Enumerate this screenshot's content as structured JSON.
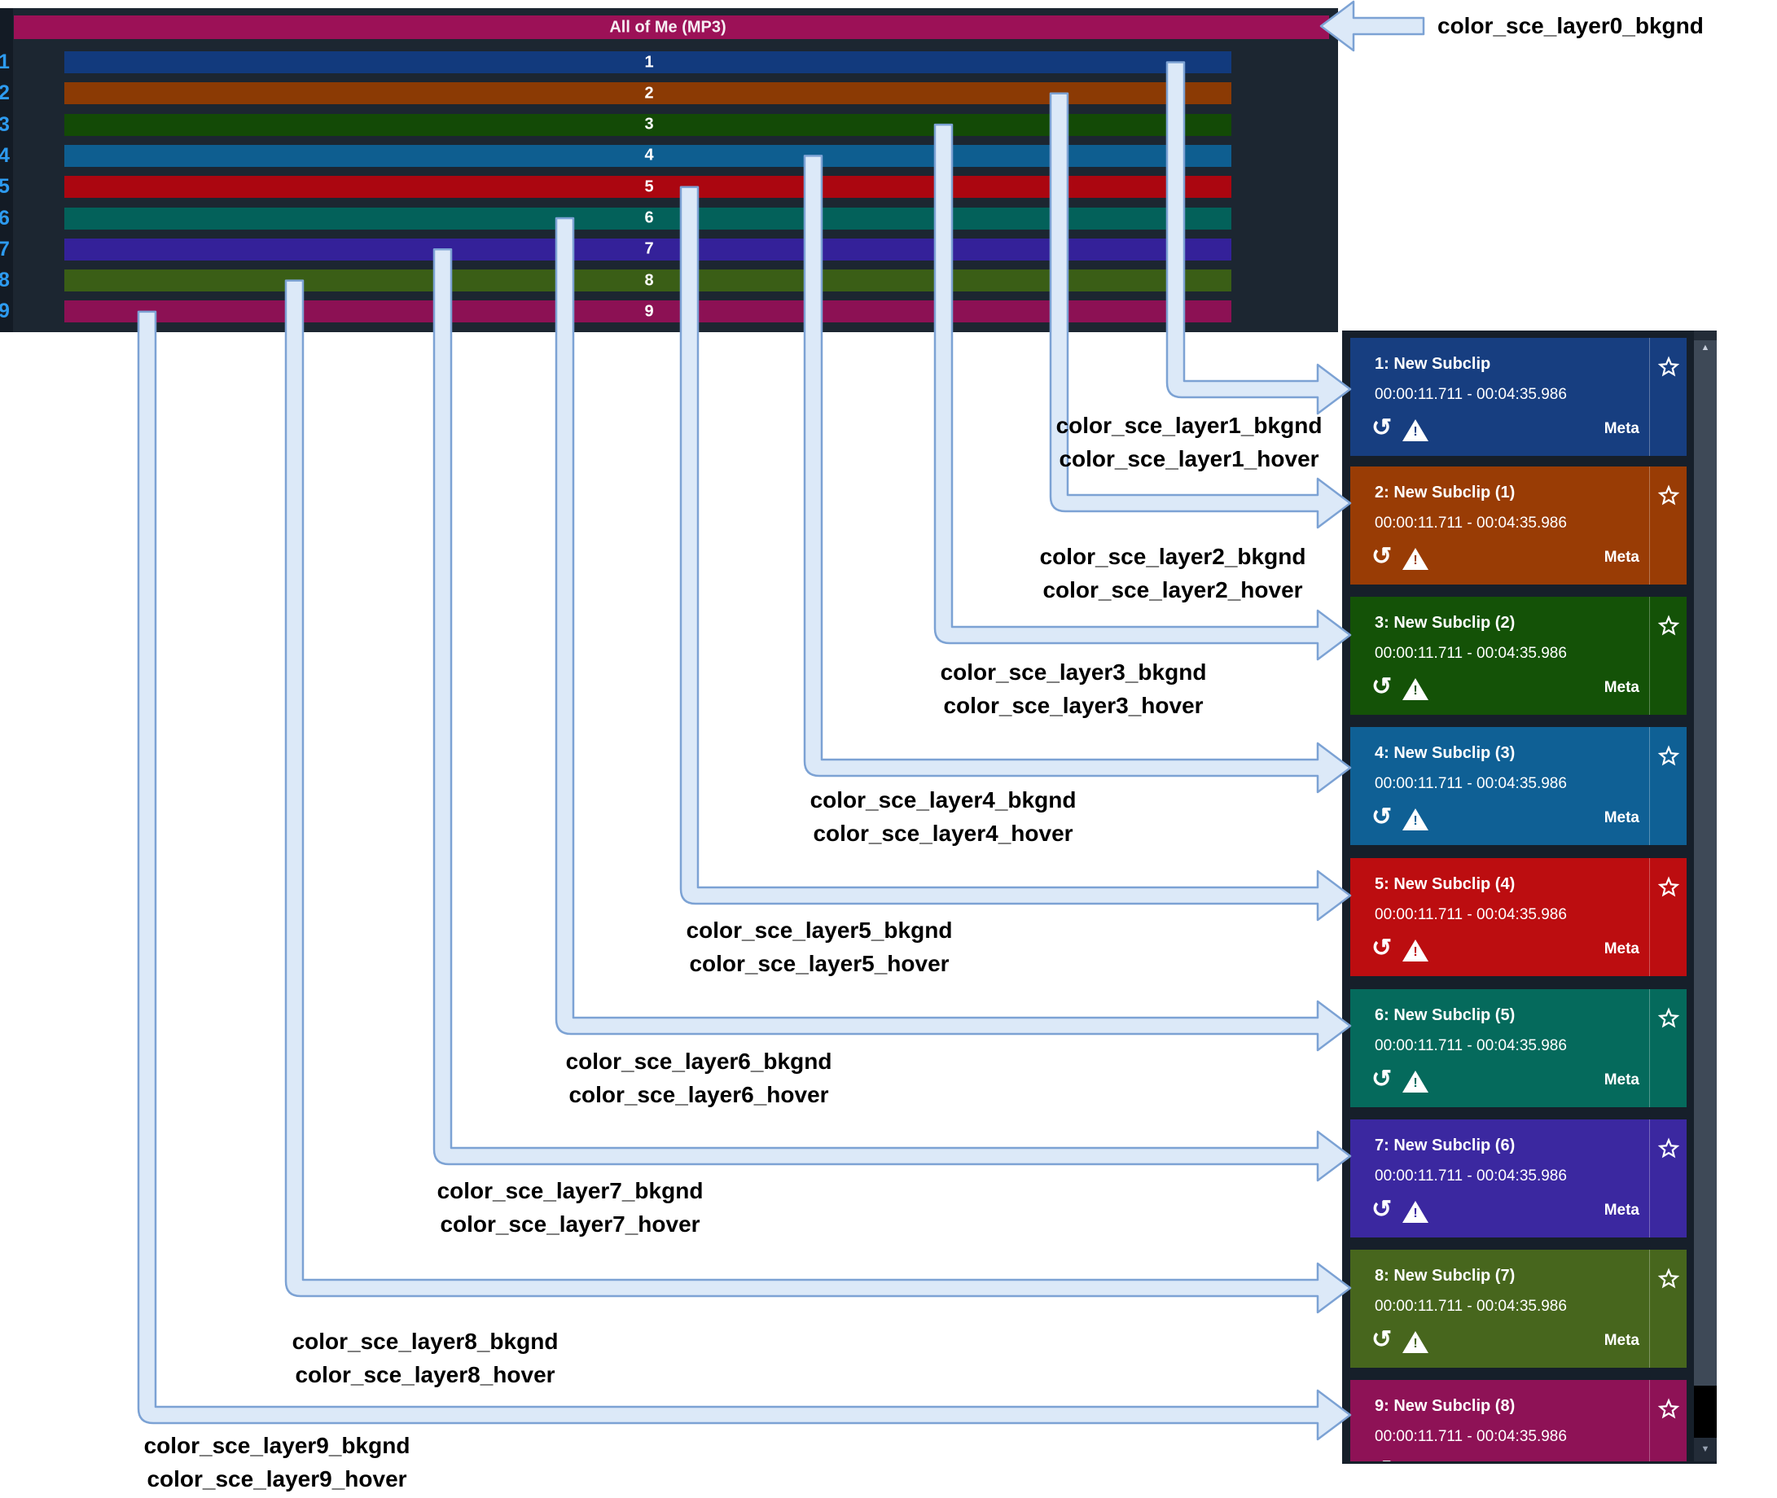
{
  "timeline": {
    "title": "All of Me (MP3)",
    "header_color": "#9c1157",
    "panel_bg": "#1c2631",
    "gutter_bg": "#131b25",
    "gutter_number_color": "#2d9bf0",
    "gutter_numbers": [
      "1",
      "2",
      "3",
      "4",
      "5",
      "6",
      "7",
      "8",
      "9"
    ],
    "tracks": [
      {
        "label": "1",
        "color": "#123a7d"
      },
      {
        "label": "2",
        "color": "#8b3a04"
      },
      {
        "label": "3",
        "color": "#134a06"
      },
      {
        "label": "4",
        "color": "#0e5e90"
      },
      {
        "label": "5",
        "color": "#ab0610"
      },
      {
        "label": "6",
        "color": "#03615a"
      },
      {
        "label": "7",
        "color": "#342199"
      },
      {
        "label": "8",
        "color": "#3a5e16"
      },
      {
        "label": "9",
        "color": "#8c1154"
      }
    ]
  },
  "subclips": {
    "panel_bg": "#161f2a",
    "meta_label": "Meta",
    "cards": [
      {
        "title": "1: New Subclip",
        "time": "00:00:11.711 - 00:04:35.986",
        "color": "#173e80"
      },
      {
        "title": "2: New Subclip (1)",
        "time": "00:00:11.711 - 00:04:35.986",
        "color": "#993c05"
      },
      {
        "title": "3: New Subclip (2)",
        "time": "00:00:11.711 - 00:04:35.986",
        "color": "#145207"
      },
      {
        "title": "4: New Subclip (3)",
        "time": "00:00:11.711 - 00:04:35.986",
        "color": "#0f6095"
      },
      {
        "title": "5: New Subclip (4)",
        "time": "00:00:11.711 - 00:04:35.986",
        "color": "#bc0d10"
      },
      {
        "title": "6: New Subclip (5)",
        "time": "00:00:11.711 - 00:04:35.986",
        "color": "#056a5c"
      },
      {
        "title": "7: New Subclip (6)",
        "time": "00:00:11.711 - 00:04:35.986",
        "color": "#3b28a0"
      },
      {
        "title": "8: New Subclip (7)",
        "time": "00:00:11.711 - 00:04:35.986",
        "color": "#47661d"
      },
      {
        "title": "9: New Subclip (8)",
        "time": "00:00:11.711 - 00:04:35.986",
        "color": "#8e1256"
      }
    ],
    "scrollbar": {
      "thumb_color": "#3e4957",
      "gap_color": "#000000",
      "button_bg": "#232c38",
      "up_glyph": "▲",
      "down_glyph": "▼"
    }
  },
  "icons": {
    "undo_glyph": "↺",
    "warning_bang": "!",
    "star_name": "star-outline"
  },
  "annotation": {
    "arrow_fill": "#dce9f8",
    "arrow_stroke": "#7ca2d4",
    "label_color": "#000000",
    "layer0_label": "color_sce_layer0_bkgnd",
    "layers": [
      {
        "bkgnd_label": "color_sce_layer1_bkgnd",
        "hover_label": "color_sce_layer1_hover"
      },
      {
        "bkgnd_label": "color_sce_layer2_bkgnd",
        "hover_label": "color_sce_layer2_hover"
      },
      {
        "bkgnd_label": "color_sce_layer3_bkgnd",
        "hover_label": "color_sce_layer3_hover"
      },
      {
        "bkgnd_label": "color_sce_layer4_bkgnd",
        "hover_label": "color_sce_layer4_hover"
      },
      {
        "bkgnd_label": "color_sce_layer5_bkgnd",
        "hover_label": "color_sce_layer5_hover"
      },
      {
        "bkgnd_label": "color_sce_layer6_bkgnd",
        "hover_label": "color_sce_layer6_hover"
      },
      {
        "bkgnd_label": "color_sce_layer7_bkgnd",
        "hover_label": "color_sce_layer7_hover"
      },
      {
        "bkgnd_label": "color_sce_layer8_bkgnd",
        "hover_label": "color_sce_layer8_hover"
      },
      {
        "bkgnd_label": "color_sce_layer9_bkgnd",
        "hover_label": "color_sce_layer9_hover"
      }
    ]
  }
}
